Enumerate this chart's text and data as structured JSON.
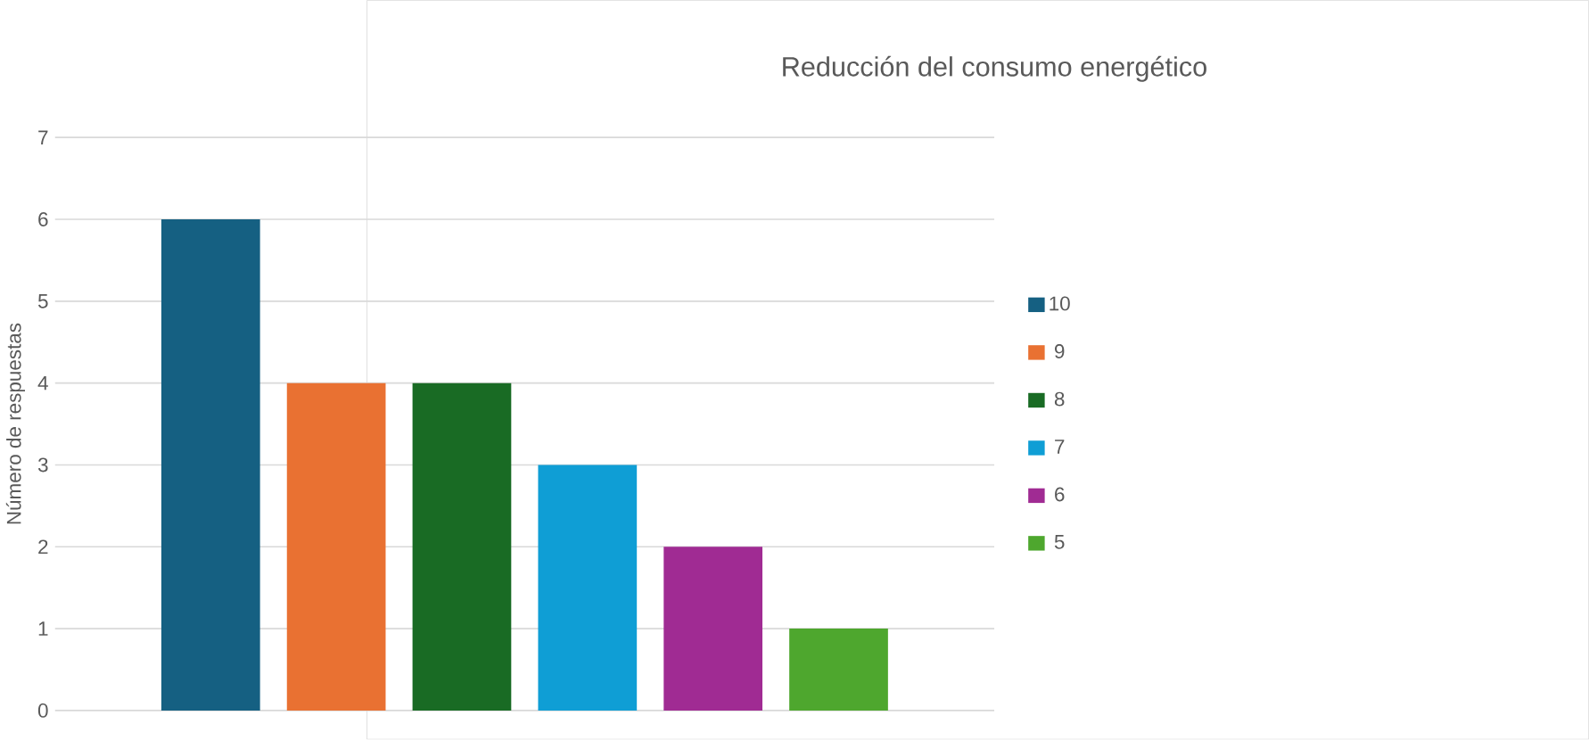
{
  "chart_data": {
    "type": "bar",
    "title": "Reducción del consumo energético",
    "ylabel": "Número de respuestas",
    "categories": [
      null
    ],
    "series": [
      {
        "name": "10",
        "color": "#156082",
        "values": [
          6
        ]
      },
      {
        "name": "9",
        "color": "#e97132",
        "values": [
          4
        ]
      },
      {
        "name": "8",
        "color": "#196b24",
        "values": [
          4
        ]
      },
      {
        "name": "7",
        "color": "#0f9ed5",
        "values": [
          3
        ]
      },
      {
        "name": "6",
        "color": "#a02b93",
        "values": [
          2
        ]
      },
      {
        "name": "5",
        "color": "#4ea72e",
        "values": [
          1
        ]
      }
    ],
    "ylim": [
      0,
      7
    ],
    "yticks": [
      0,
      1,
      2,
      3,
      4,
      5,
      6,
      7
    ],
    "grid": "y",
    "legend": "right"
  }
}
